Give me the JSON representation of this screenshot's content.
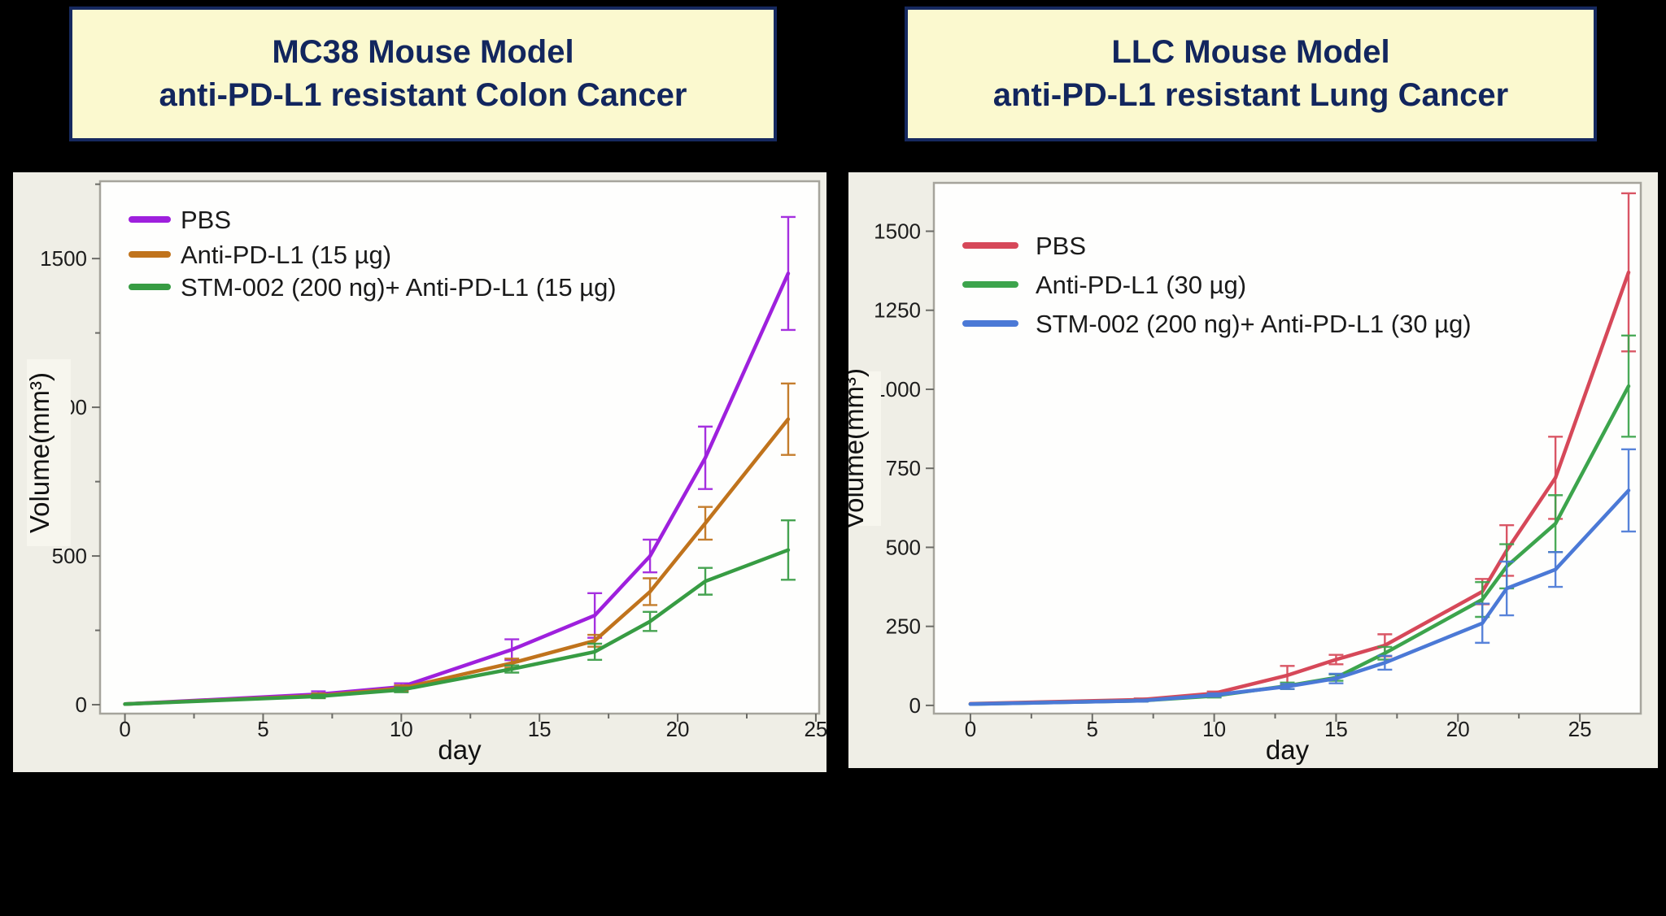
{
  "chart_data": [
    {
      "type": "line",
      "title": "MC38 Mouse Model anti-PD-L1 resistant Colon Cancer",
      "title_line1": "MC38 Mouse Model",
      "title_line2": "anti-PD-L1 resistant Colon Cancer",
      "xlabel": "day",
      "ylabel": "Volume(mm³)",
      "xlim": [
        -0.9,
        25.12
      ],
      "ylim": [
        -30,
        1760
      ],
      "x_major_ticks": [
        0,
        5,
        10,
        15,
        20,
        25
      ],
      "x_minor_ticks": [
        2.5,
        7.5,
        12.5,
        17.5,
        22.5
      ],
      "y_major_ticks": [
        0,
        500,
        1000,
        1500
      ],
      "y_minor_ticks": [
        250,
        750,
        1250,
        1750
      ],
      "grid": false,
      "legend_position": "upper-left-inside",
      "x": [
        0,
        7,
        10,
        14,
        17,
        19,
        21,
        24
      ],
      "series": [
        {
          "name": "PBS",
          "color": "#9E20DD",
          "values": [
            2,
            35,
            60,
            185,
            300,
            500,
            830,
            1450
          ],
          "errors": [
            0,
            10,
            12,
            35,
            75,
            55,
            105,
            190
          ]
        },
        {
          "name": "Anti-PD-L1 (15 µg)",
          "color": "#C0731C",
          "values": [
            2,
            30,
            55,
            140,
            215,
            380,
            610,
            960
          ],
          "errors": [
            0,
            8,
            10,
            15,
            20,
            45,
            55,
            120
          ]
        },
        {
          "name": "STM-002 (200 ng)+ Anti-PD-L1 (15 µg)",
          "color": "#379C43",
          "values": [
            2,
            28,
            50,
            120,
            178,
            280,
            415,
            520
          ],
          "errors": [
            0,
            6,
            8,
            12,
            27,
            32,
            45,
            100
          ]
        }
      ]
    },
    {
      "type": "line",
      "title": "LLC Mouse Model anti-PD-L1 resistant Lung Cancer",
      "title_line1": "LLC Mouse Model",
      "title_line2": "anti-PD-L1 resistant Lung Cancer",
      "xlabel": "day",
      "ylabel": "Volume(mm³)",
      "xlim": [
        -1.5,
        27.5
      ],
      "ylim": [
        -26,
        1653
      ],
      "x_major_ticks": [
        0,
        5,
        10,
        15,
        20,
        25
      ],
      "x_minor_ticks": [
        2.5,
        7.5,
        12.5,
        17.5,
        22.5
      ],
      "y_major_ticks": [
        0,
        250,
        500,
        750,
        1000,
        1250,
        1500
      ],
      "y_minor_ticks": [],
      "grid": false,
      "legend_position": "upper-left-inside",
      "x": [
        0,
        7,
        10,
        13,
        15,
        17,
        21,
        22,
        24,
        27
      ],
      "series": [
        {
          "name": "PBS",
          "color": "#D64859",
          "values": [
            5,
            18,
            38,
            95,
            145,
            190,
            360,
            490,
            720,
            1370
          ],
          "errors": [
            0,
            4,
            6,
            30,
            15,
            35,
            40,
            80,
            130,
            250
          ]
        },
        {
          "name": "Anti-PD-L1 (30 µg)",
          "color": "#3CA44C",
          "values": [
            4,
            15,
            30,
            62,
            88,
            165,
            335,
            440,
            575,
            1010
          ],
          "errors": [
            0,
            3,
            5,
            10,
            10,
            20,
            55,
            70,
            90,
            160
          ]
        },
        {
          "name": "STM-002 (200 ng)+ Anti-PD-L1 (30 µg)",
          "color": "#4B79D6",
          "values": [
            4,
            15,
            33,
            60,
            85,
            135,
            260,
            370,
            430,
            680
          ],
          "errors": [
            0,
            3,
            5,
            8,
            15,
            22,
            62,
            85,
            55,
            130
          ]
        }
      ]
    }
  ],
  "colors": {
    "slide_background": "#000000",
    "panel_background": "#efeee6",
    "plot_background": "#fefefd",
    "plot_frame": "#a6a49c",
    "title_box_background": "#fbf9cf",
    "title_box_border": "#16295f",
    "title_text": "#12265e",
    "axis_text": "#1c1c1c"
  }
}
